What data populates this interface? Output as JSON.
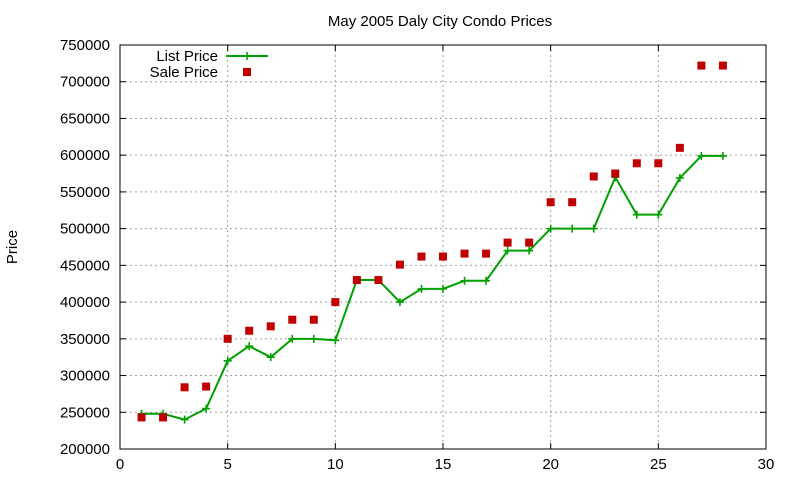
{
  "chart_data": {
    "type": "line",
    "title": "May 2005 Daly City Condo Prices",
    "xlabel": "",
    "ylabel": "Price",
    "xlim": [
      0,
      30
    ],
    "ylim": [
      200000,
      750000
    ],
    "x_ticks": [
      "0",
      "5",
      "10",
      "15",
      "20",
      "25",
      "30"
    ],
    "y_ticks": [
      "200000",
      "250000",
      "300000",
      "350000",
      "400000",
      "450000",
      "500000",
      "550000",
      "600000",
      "650000",
      "700000",
      "750000"
    ],
    "grid": true,
    "legend_position": "top-left",
    "series": [
      {
        "name": "List Price",
        "style": "lines+points",
        "color": "#00a000",
        "x": [
          1,
          2,
          3,
          4,
          5,
          6,
          7,
          8,
          9,
          10,
          11,
          12,
          13,
          14,
          15,
          16,
          17,
          18,
          19,
          20,
          21,
          22,
          23,
          24,
          25,
          26,
          27,
          28
        ],
        "y": [
          248000,
          248000,
          240000,
          255000,
          320000,
          340000,
          325000,
          350000,
          350000,
          348000,
          430000,
          430000,
          400000,
          418000,
          418000,
          429000,
          429000,
          470000,
          470000,
          500000,
          500000,
          500000,
          570000,
          519000,
          519000,
          569000,
          599000,
          599000
        ]
      },
      {
        "name": "Sale Price",
        "style": "points",
        "color": "#c00000",
        "x": [
          1,
          2,
          3,
          4,
          5,
          6,
          7,
          8,
          9,
          10,
          11,
          12,
          13,
          14,
          15,
          16,
          17,
          18,
          19,
          20,
          21,
          22,
          23,
          24,
          25,
          26,
          27,
          28
        ],
        "y": [
          243000,
          243000,
          284000,
          285000,
          350000,
          361000,
          367000,
          376000,
          376000,
          400000,
          430000,
          430000,
          451000,
          462000,
          462000,
          466000,
          466000,
          481000,
          481000,
          536000,
          536000,
          571000,
          575000,
          589000,
          589000,
          610000,
          722000,
          722000
        ]
      }
    ]
  }
}
